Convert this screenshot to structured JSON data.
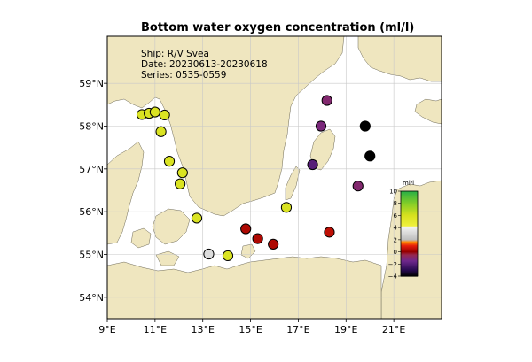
{
  "title": "Bottom water oxygen concentration (ml/l)",
  "info": {
    "ship": "Ship: R/V Svea",
    "date": "Date: 20230613-20230618",
    "series": "Series: 0535-0559"
  },
  "axes": {
    "lon_range": [
      9,
      23
    ],
    "lat_range": [
      53.5,
      60.1
    ],
    "lon_ticks": [
      {
        "v": 9,
        "label": "9°E"
      },
      {
        "v": 11,
        "label": "11°E"
      },
      {
        "v": 13,
        "label": "13°E"
      },
      {
        "v": 15,
        "label": "15°E"
      },
      {
        "v": 17,
        "label": "17°E"
      },
      {
        "v": 19,
        "label": "19°E"
      },
      {
        "v": 21,
        "label": "21°E"
      }
    ],
    "lat_ticks": [
      {
        "v": 54,
        "label": "54°N"
      },
      {
        "v": 55,
        "label": "55°N"
      },
      {
        "v": 56,
        "label": "56°N"
      },
      {
        "v": 57,
        "label": "57°N"
      },
      {
        "v": 58,
        "label": "58°N"
      },
      {
        "v": 59,
        "label": "59°N"
      }
    ]
  },
  "colorbar": {
    "label": "ml/l",
    "min": -4,
    "max": 10,
    "ticks": [
      {
        "v": 10,
        "label": "10"
      },
      {
        "v": 8,
        "label": "8"
      },
      {
        "v": 6,
        "label": "6"
      },
      {
        "v": 4,
        "label": "4"
      },
      {
        "v": 2,
        "label": "2"
      },
      {
        "v": 0,
        "label": "0"
      },
      {
        "v": -2,
        "label": "−2"
      },
      {
        "v": -4,
        "label": "−4"
      }
    ]
  },
  "colors": {
    "land": "#efe6bf",
    "sea": "#ffffff",
    "grid": "#c8c8c8"
  },
  "stations": [
    {
      "lon": 10.45,
      "lat": 58.27,
      "o2": 5.8
    },
    {
      "lon": 10.75,
      "lat": 58.3,
      "o2": 5.8
    },
    {
      "lon": 11.0,
      "lat": 58.33,
      "o2": 5.8
    },
    {
      "lon": 11.4,
      "lat": 58.26,
      "o2": 5.8
    },
    {
      "lon": 11.25,
      "lat": 57.87,
      "o2": 5.8
    },
    {
      "lon": 11.6,
      "lat": 57.18,
      "o2": 5.8
    },
    {
      "lon": 12.15,
      "lat": 56.91,
      "o2": 5.8
    },
    {
      "lon": 12.05,
      "lat": 56.65,
      "o2": 5.8
    },
    {
      "lon": 12.75,
      "lat": 55.85,
      "o2": 5.8
    },
    {
      "lon": 13.25,
      "lat": 55.01,
      "o2": 3.2
    },
    {
      "lon": 14.05,
      "lat": 54.97,
      "o2": 5.8
    },
    {
      "lon": 14.8,
      "lat": 55.6,
      "o2": 0.3
    },
    {
      "lon": 15.3,
      "lat": 55.37,
      "o2": 0.3
    },
    {
      "lon": 15.95,
      "lat": 55.24,
      "o2": 0.3
    },
    {
      "lon": 16.5,
      "lat": 56.1,
      "o2": 5.8
    },
    {
      "lon": 18.3,
      "lat": 55.52,
      "o2": 0.5
    },
    {
      "lon": 17.6,
      "lat": 57.1,
      "o2": -2.0
    },
    {
      "lon": 17.95,
      "lat": 58.0,
      "o2": -1.2
    },
    {
      "lon": 18.2,
      "lat": 58.6,
      "o2": -1.0
    },
    {
      "lon": 19.8,
      "lat": 58.0,
      "o2": -4.0
    },
    {
      "lon": 20.0,
      "lat": 57.3,
      "o2": -4.0
    },
    {
      "lon": 19.5,
      "lat": 56.6,
      "o2": -1.0
    }
  ]
}
